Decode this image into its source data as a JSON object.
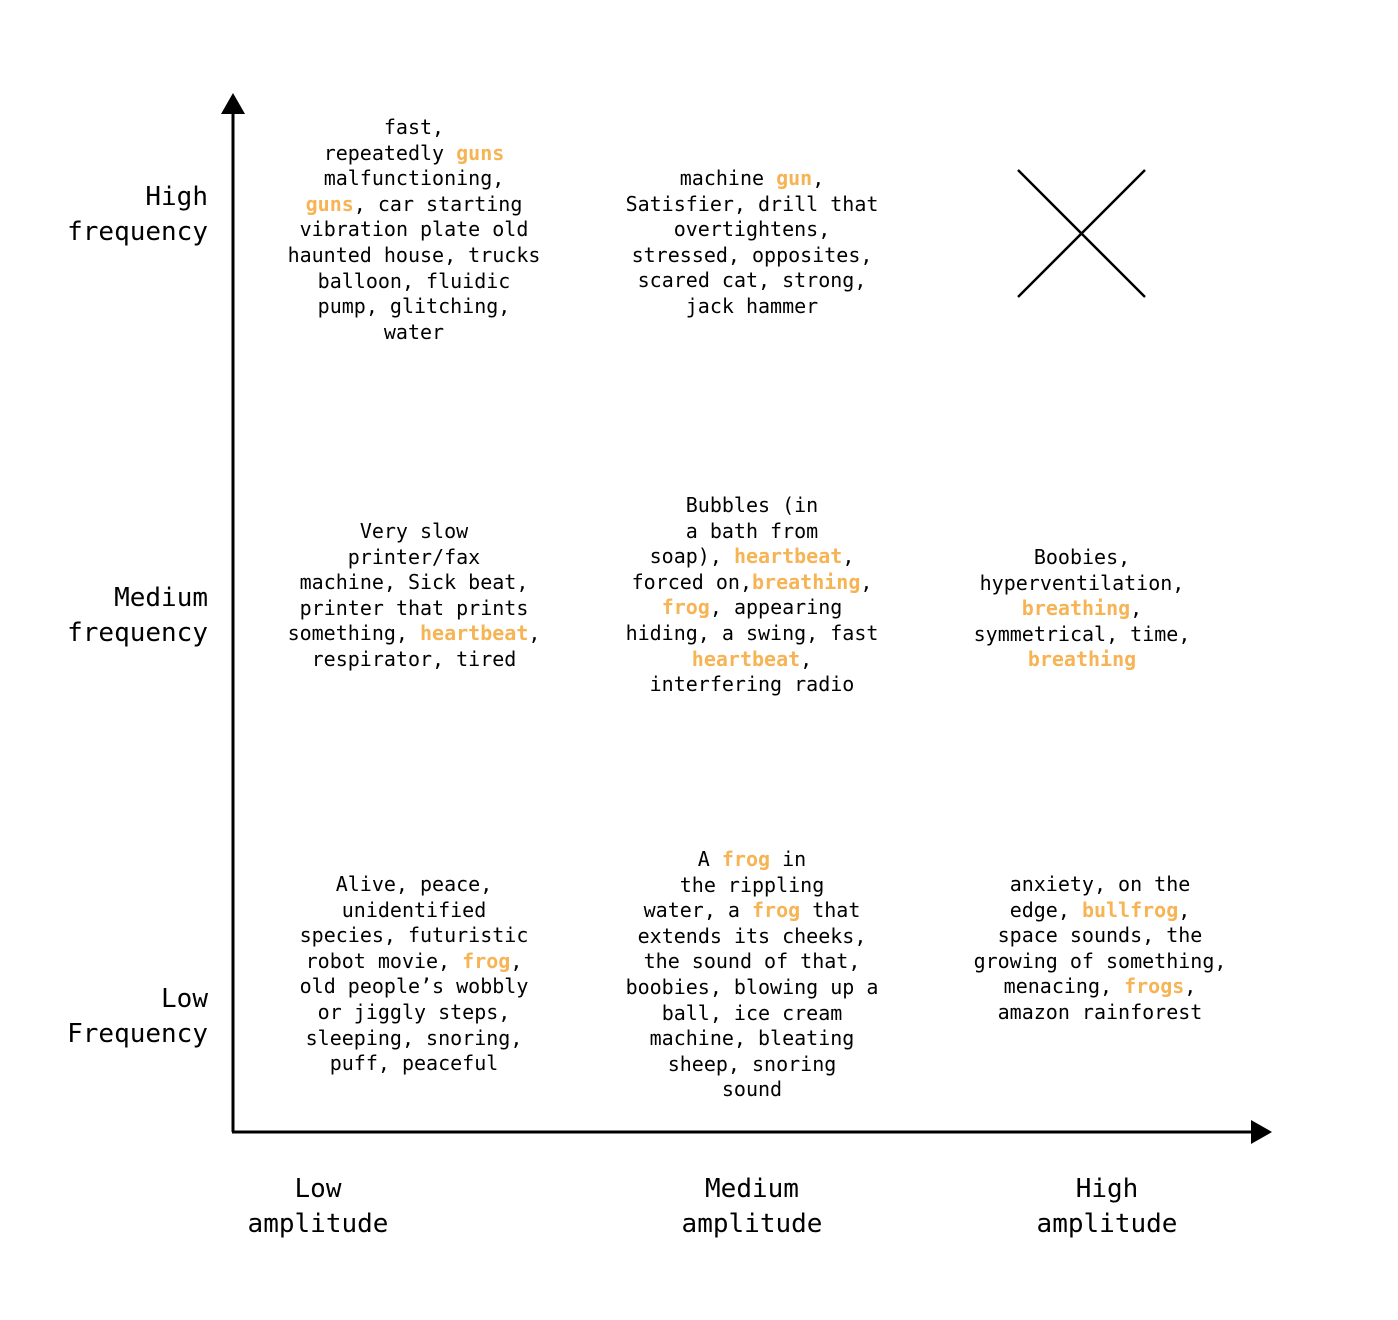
{
  "y_axis_labels": {
    "high": "High\nfrequency",
    "medium": "Medium\nfrequency",
    "low": "Low\nFrequency"
  },
  "x_axis_labels": {
    "low": "Low\namplitude",
    "medium": "Medium\namplitude",
    "high": "High\namplitude"
  },
  "highlight_color": "#f6b455",
  "empty_cell_icon": "x-mark-icon",
  "cells": {
    "high_low": [
      {
        "t": "fast,\nrepeatedly "
      },
      {
        "t": "guns",
        "h": true
      },
      {
        "t": "\nmalfunctioning,\n"
      },
      {
        "t": "guns",
        "h": true
      },
      {
        "t": ", car starting\nvibration plate old\nhaunted house, trucks\nballoon, fluidic\npump, glitching,\nwater"
      }
    ],
    "high_medium": [
      {
        "t": "machine "
      },
      {
        "t": "gun",
        "h": true
      },
      {
        "t": ",\nSatisfier, drill that\novertightens,\nstressed, opposites,\nscared cat, strong,\njack hammer"
      }
    ],
    "medium_low": [
      {
        "t": "Very slow\nprinter/fax\nmachine, Sick beat,\nprinter that prints\nsomething, "
      },
      {
        "t": "heartbeat",
        "h": true
      },
      {
        "t": ",\nrespirator, tired"
      }
    ],
    "medium_medium": [
      {
        "t": "Bubbles (in\na bath from\nsoap), "
      },
      {
        "t": "heartbeat",
        "h": true
      },
      {
        "t": ",\nforced on,"
      },
      {
        "t": "breathing",
        "h": true
      },
      {
        "t": ",\n"
      },
      {
        "t": "frog",
        "h": true
      },
      {
        "t": ", appearing\nhiding, a swing, fast\n"
      },
      {
        "t": "heartbeat",
        "h": true
      },
      {
        "t": ",\ninterfering radio"
      }
    ],
    "medium_high": [
      {
        "t": "Boobies,\nhyperventilation,\n"
      },
      {
        "t": "breathing",
        "h": true
      },
      {
        "t": ",\nsymmetrical, time,\n"
      },
      {
        "t": "breathing",
        "h": true
      }
    ],
    "low_low": [
      {
        "t": "Alive, peace,\nunidentified\nspecies, futuristic\nrobot movie, "
      },
      {
        "t": "frog",
        "h": true
      },
      {
        "t": ",\nold people’s wobbly\nor jiggly steps,\nsleeping, snoring,\npuff, peaceful"
      }
    ],
    "low_medium": [
      {
        "t": "A "
      },
      {
        "t": "frog",
        "h": true
      },
      {
        "t": " in\nthe rippling\nwater, a "
      },
      {
        "t": "frog",
        "h": true
      },
      {
        "t": " that\nextends its cheeks,\nthe sound of that,\nboobies, blowing up a\nball, ice cream\nmachine, bleating\nsheep, snoring\nsound"
      }
    ],
    "low_high": [
      {
        "t": "anxiety, on the\nedge, "
      },
      {
        "t": "bullfrog",
        "h": true
      },
      {
        "t": ",\nspace sounds, the\ngrowing of something,\nmenacing, "
      },
      {
        "t": "frogs",
        "h": true
      },
      {
        "t": ",\namazon rainforest"
      }
    ]
  }
}
